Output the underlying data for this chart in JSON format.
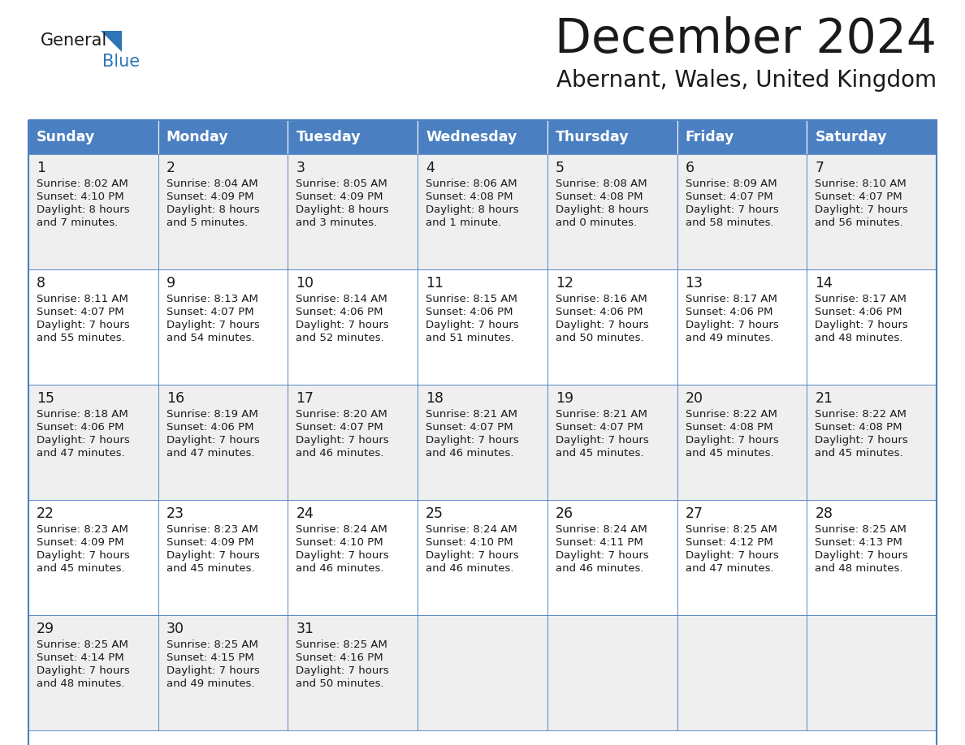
{
  "title": "December 2024",
  "subtitle": "Abernant, Wales, United Kingdom",
  "header_color": "#4a7fc1",
  "header_text_color": "#FFFFFF",
  "day_names": [
    "Sunday",
    "Monday",
    "Tuesday",
    "Wednesday",
    "Thursday",
    "Friday",
    "Saturday"
  ],
  "cell_bg_odd": "#EFEFEF",
  "cell_bg_even": "#FFFFFF",
  "border_color": "#4a7fc1",
  "title_color": "#1a1a1a",
  "subtitle_color": "#1a1a1a",
  "logo_text_color": "#1a1a1a",
  "logo_blue_color": "#2E75B6",
  "days": [
    {
      "day": 1,
      "col": 0,
      "row": 0,
      "sunrise": "8:02 AM",
      "sunset": "4:10 PM",
      "daylight_h": "8 hours",
      "daylight_m": "and 7 minutes."
    },
    {
      "day": 2,
      "col": 1,
      "row": 0,
      "sunrise": "8:04 AM",
      "sunset": "4:09 PM",
      "daylight_h": "8 hours",
      "daylight_m": "and 5 minutes."
    },
    {
      "day": 3,
      "col": 2,
      "row": 0,
      "sunrise": "8:05 AM",
      "sunset": "4:09 PM",
      "daylight_h": "8 hours",
      "daylight_m": "and 3 minutes."
    },
    {
      "day": 4,
      "col": 3,
      "row": 0,
      "sunrise": "8:06 AM",
      "sunset": "4:08 PM",
      "daylight_h": "8 hours",
      "daylight_m": "and 1 minute."
    },
    {
      "day": 5,
      "col": 4,
      "row": 0,
      "sunrise": "8:08 AM",
      "sunset": "4:08 PM",
      "daylight_h": "8 hours",
      "daylight_m": "and 0 minutes."
    },
    {
      "day": 6,
      "col": 5,
      "row": 0,
      "sunrise": "8:09 AM",
      "sunset": "4:07 PM",
      "daylight_h": "7 hours",
      "daylight_m": "and 58 minutes."
    },
    {
      "day": 7,
      "col": 6,
      "row": 0,
      "sunrise": "8:10 AM",
      "sunset": "4:07 PM",
      "daylight_h": "7 hours",
      "daylight_m": "and 56 minutes."
    },
    {
      "day": 8,
      "col": 0,
      "row": 1,
      "sunrise": "8:11 AM",
      "sunset": "4:07 PM",
      "daylight_h": "7 hours",
      "daylight_m": "and 55 minutes."
    },
    {
      "day": 9,
      "col": 1,
      "row": 1,
      "sunrise": "8:13 AM",
      "sunset": "4:07 PM",
      "daylight_h": "7 hours",
      "daylight_m": "and 54 minutes."
    },
    {
      "day": 10,
      "col": 2,
      "row": 1,
      "sunrise": "8:14 AM",
      "sunset": "4:06 PM",
      "daylight_h": "7 hours",
      "daylight_m": "and 52 minutes."
    },
    {
      "day": 11,
      "col": 3,
      "row": 1,
      "sunrise": "8:15 AM",
      "sunset": "4:06 PM",
      "daylight_h": "7 hours",
      "daylight_m": "and 51 minutes."
    },
    {
      "day": 12,
      "col": 4,
      "row": 1,
      "sunrise": "8:16 AM",
      "sunset": "4:06 PM",
      "daylight_h": "7 hours",
      "daylight_m": "and 50 minutes."
    },
    {
      "day": 13,
      "col": 5,
      "row": 1,
      "sunrise": "8:17 AM",
      "sunset": "4:06 PM",
      "daylight_h": "7 hours",
      "daylight_m": "and 49 minutes."
    },
    {
      "day": 14,
      "col": 6,
      "row": 1,
      "sunrise": "8:17 AM",
      "sunset": "4:06 PM",
      "daylight_h": "7 hours",
      "daylight_m": "and 48 minutes."
    },
    {
      "day": 15,
      "col": 0,
      "row": 2,
      "sunrise": "8:18 AM",
      "sunset": "4:06 PM",
      "daylight_h": "7 hours",
      "daylight_m": "and 47 minutes."
    },
    {
      "day": 16,
      "col": 1,
      "row": 2,
      "sunrise": "8:19 AM",
      "sunset": "4:06 PM",
      "daylight_h": "7 hours",
      "daylight_m": "and 47 minutes."
    },
    {
      "day": 17,
      "col": 2,
      "row": 2,
      "sunrise": "8:20 AM",
      "sunset": "4:07 PM",
      "daylight_h": "7 hours",
      "daylight_m": "and 46 minutes."
    },
    {
      "day": 18,
      "col": 3,
      "row": 2,
      "sunrise": "8:21 AM",
      "sunset": "4:07 PM",
      "daylight_h": "7 hours",
      "daylight_m": "and 46 minutes."
    },
    {
      "day": 19,
      "col": 4,
      "row": 2,
      "sunrise": "8:21 AM",
      "sunset": "4:07 PM",
      "daylight_h": "7 hours",
      "daylight_m": "and 45 minutes."
    },
    {
      "day": 20,
      "col": 5,
      "row": 2,
      "sunrise": "8:22 AM",
      "sunset": "4:08 PM",
      "daylight_h": "7 hours",
      "daylight_m": "and 45 minutes."
    },
    {
      "day": 21,
      "col": 6,
      "row": 2,
      "sunrise": "8:22 AM",
      "sunset": "4:08 PM",
      "daylight_h": "7 hours",
      "daylight_m": "and 45 minutes."
    },
    {
      "day": 22,
      "col": 0,
      "row": 3,
      "sunrise": "8:23 AM",
      "sunset": "4:09 PM",
      "daylight_h": "7 hours",
      "daylight_m": "and 45 minutes."
    },
    {
      "day": 23,
      "col": 1,
      "row": 3,
      "sunrise": "8:23 AM",
      "sunset": "4:09 PM",
      "daylight_h": "7 hours",
      "daylight_m": "and 45 minutes."
    },
    {
      "day": 24,
      "col": 2,
      "row": 3,
      "sunrise": "8:24 AM",
      "sunset": "4:10 PM",
      "daylight_h": "7 hours",
      "daylight_m": "and 46 minutes."
    },
    {
      "day": 25,
      "col": 3,
      "row": 3,
      "sunrise": "8:24 AM",
      "sunset": "4:10 PM",
      "daylight_h": "7 hours",
      "daylight_m": "and 46 minutes."
    },
    {
      "day": 26,
      "col": 4,
      "row": 3,
      "sunrise": "8:24 AM",
      "sunset": "4:11 PM",
      "daylight_h": "7 hours",
      "daylight_m": "and 46 minutes."
    },
    {
      "day": 27,
      "col": 5,
      "row": 3,
      "sunrise": "8:25 AM",
      "sunset": "4:12 PM",
      "daylight_h": "7 hours",
      "daylight_m": "and 47 minutes."
    },
    {
      "day": 28,
      "col": 6,
      "row": 3,
      "sunrise": "8:25 AM",
      "sunset": "4:13 PM",
      "daylight_h": "7 hours",
      "daylight_m": "and 48 minutes."
    },
    {
      "day": 29,
      "col": 0,
      "row": 4,
      "sunrise": "8:25 AM",
      "sunset": "4:14 PM",
      "daylight_h": "7 hours",
      "daylight_m": "and 48 minutes."
    },
    {
      "day": 30,
      "col": 1,
      "row": 4,
      "sunrise": "8:25 AM",
      "sunset": "4:15 PM",
      "daylight_h": "7 hours",
      "daylight_m": "and 49 minutes."
    },
    {
      "day": 31,
      "col": 2,
      "row": 4,
      "sunrise": "8:25 AM",
      "sunset": "4:16 PM",
      "daylight_h": "7 hours",
      "daylight_m": "and 50 minutes."
    }
  ]
}
